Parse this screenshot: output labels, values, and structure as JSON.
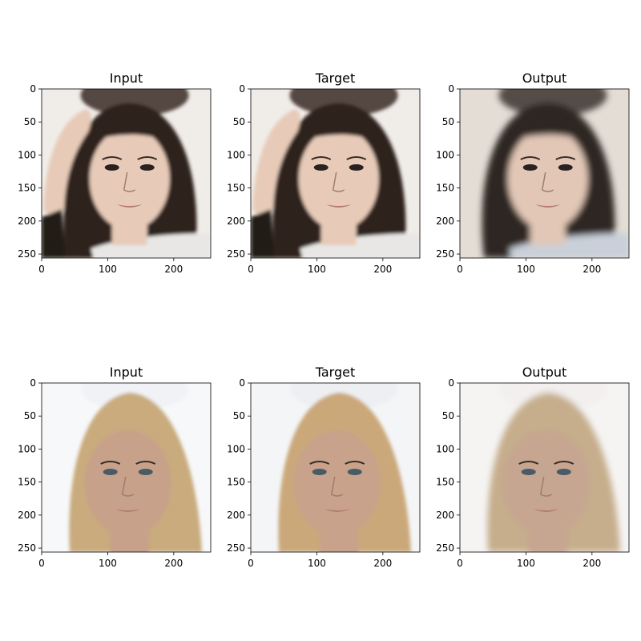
{
  "figure": {
    "panels": [
      {
        "title": "Input",
        "row": 0,
        "col": 0,
        "image": {
          "hair": "#2e221c",
          "skin": "#e7cbb8",
          "background": "#f0ede9",
          "top_blur": "#3a2a25",
          "clothes": "#e9e7e5",
          "variant": "dark-hair-hand"
        }
      },
      {
        "title": "Target",
        "row": 0,
        "col": 1,
        "image": {
          "hair": "#2e221c",
          "skin": "#e7cbb8",
          "background": "#f0ede9",
          "top_blur": "#3a2a25",
          "clothes": "#e9e7e5",
          "variant": "dark-hair-hand"
        }
      },
      {
        "title": "Output",
        "row": 0,
        "col": 2,
        "image": {
          "hair": "#2f2823",
          "skin": "#e2c7b7",
          "background": "#e3ddd6",
          "top_blur": "#3b322d",
          "clothes": "#c9d0d9",
          "variant": "dark-hair-generated"
        }
      },
      {
        "title": "Input",
        "row": 1,
        "col": 0,
        "image": {
          "hair": "#c9ab7d",
          "skin": "#c7a18a",
          "background": "#f7f8fa",
          "top_blur": "#eef1f5",
          "clothes": "#e6e4e1",
          "variant": "blonde"
        }
      },
      {
        "title": "Target",
        "row": 1,
        "col": 1,
        "image": {
          "hair": "#cba87a",
          "skin": "#c8a28a",
          "background": "#f4f5f7",
          "top_blur": "#eceef2",
          "clothes": "#e6e4e1",
          "variant": "blonde"
        }
      },
      {
        "title": "Output",
        "row": 1,
        "col": 2,
        "image": {
          "hair": "#c6ad8c",
          "skin": "#c6a591",
          "background": "#f5f4f3",
          "top_blur": "#f1efed",
          "clothes": "#e6e4e1",
          "variant": "blonde-generated"
        }
      }
    ],
    "axes": {
      "x_ticks": [
        "0",
        "100",
        "200"
      ],
      "y_ticks": [
        "0",
        "50",
        "100",
        "150",
        "200",
        "250"
      ],
      "x_tick_values": [
        0,
        100,
        200
      ],
      "y_tick_values": [
        0,
        50,
        100,
        150,
        200,
        250
      ],
      "range": [
        0,
        256
      ]
    }
  }
}
